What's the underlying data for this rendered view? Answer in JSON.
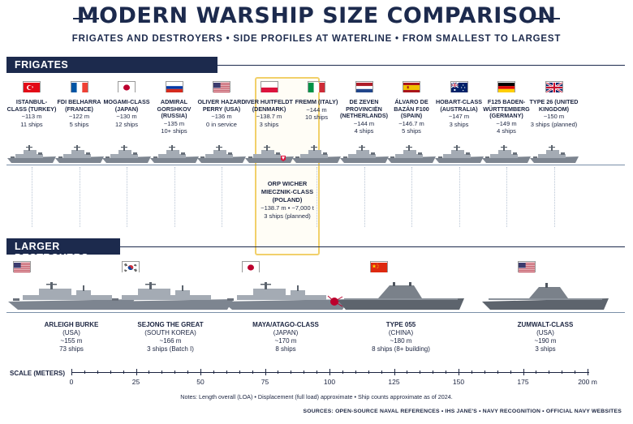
{
  "header": {
    "title": "MODERN WARSHIP SIZE COMPARISON",
    "subtitle": "FRIGATES AND DESTROYERS • SIDE PROFILES AT WATERLINE • FROM SMALLEST TO LARGEST"
  },
  "frigates": {
    "label": "FRIGATES",
    "ships": [
      {
        "name": "ISTANBUL-CLASS (TURKEY)",
        "length": "~113 m",
        "count": "11 ships",
        "flag": "flag-turkey-icon"
      },
      {
        "name": "FDI BELHARRA (FRANCE)",
        "length": "~122 m",
        "count": "5 ships",
        "flag": "flag-france-icon"
      },
      {
        "name": "MOGAMI-CLASS (JAPAN)",
        "length": "~130 m",
        "count": "12 ships",
        "flag": "flag-japan-icon"
      },
      {
        "name": "ADMIRAL GORSHKOV (RUSSIA)",
        "length": "~135 m",
        "count": "10+ ships",
        "flag": "flag-russia-icon"
      },
      {
        "name": "OLIVER HAZARD PERRY (USA)",
        "length": "~136 m",
        "count": "0 in service",
        "flag": "flag-usa-icon"
      },
      {
        "name": "IVER HUITFELDT (DENMARK)",
        "length": "~138.7 m",
        "count": "3 ships",
        "flag": "flag-poland-icon"
      },
      {
        "name": "FREMM (ITALY)",
        "length": "~144 m",
        "count": "10 ships",
        "flag": "flag-italy-icon"
      },
      {
        "name": "DE ZEVEN PROVINCIËN (NETHERLANDS)",
        "length": "~144 m",
        "count": "4 ships",
        "flag": "flag-netherlands-icon"
      },
      {
        "name": "ÁLVARO DE BAZÁN F100 (SPAIN)",
        "length": "~146.7 m",
        "count": "5 ships",
        "flag": "flag-spain-icon"
      },
      {
        "name": "HOBART-CLASS (AUSTRALIA)",
        "length": "~147 m",
        "count": "3 ships",
        "flag": "flag-australia-icon"
      },
      {
        "name": "F125 BADEN-WÜRTTEMBERG (GERMANY)",
        "length": "~149 m",
        "count": "4 ships",
        "flag": "flag-germany-icon"
      },
      {
        "name": "TYPE 26 (UNITED KINGDOM)",
        "length": "~150 m",
        "count": "3 ships (planned)",
        "flag": "flag-uk-icon"
      }
    ],
    "highlight": {
      "name": "ORP WICHER MIECZNIK-CLASS (POLAND)",
      "specs": "~138.7 m • ~7,000 t",
      "count": "3 ships (planned)"
    }
  },
  "destroyers": {
    "label": "LARGER DESTROYERS",
    "ships": [
      {
        "name": "ARLEIGH BURKE",
        "country": "(USA)",
        "length": "~155 m",
        "count": "73 ships",
        "flag": "flag-usa-icon"
      },
      {
        "name": "SEJONG THE GREAT",
        "country": "(SOUTH KOREA)",
        "length": "~166 m",
        "count": "3 ships (Batch I)",
        "flag": "flag-south-korea-icon"
      },
      {
        "name": "MAYA/ATAGO-CLASS",
        "country": "(JAPAN)",
        "length": "~170 m",
        "count": "8 ships",
        "flag": "flag-japan-icon"
      },
      {
        "name": "TYPE 055",
        "country": "(CHINA)",
        "length": "~180 m",
        "count": "8 ships (8+ building)",
        "flag": "flag-china-icon"
      },
      {
        "name": "ZUMWALT-CLASS",
        "country": "(USA)",
        "length": "~190 m",
        "count": "3 ships",
        "flag": "flag-usa-icon"
      }
    ]
  },
  "scale": {
    "label": "SCALE (METERS)",
    "ticks": [
      "0",
      "25",
      "50",
      "75",
      "100",
      "125",
      "150",
      "175",
      "200 m"
    ]
  },
  "footer": {
    "notes": "Notes: Length overall (LOA) • Displacement (full load) approximate • Ship counts approximate as of 2024.",
    "sources": "SOURCES: OPEN-SOURCE NAVAL REFERENCES • IHS JANE'S • NAVY RECOGNITION • OFFICIAL NAVY WEBSITES"
  },
  "colors": {
    "navy": "#1c2a4d",
    "highlight": "#f1d06a",
    "hull": "#7d8590",
    "deck": "#a4abb4"
  }
}
